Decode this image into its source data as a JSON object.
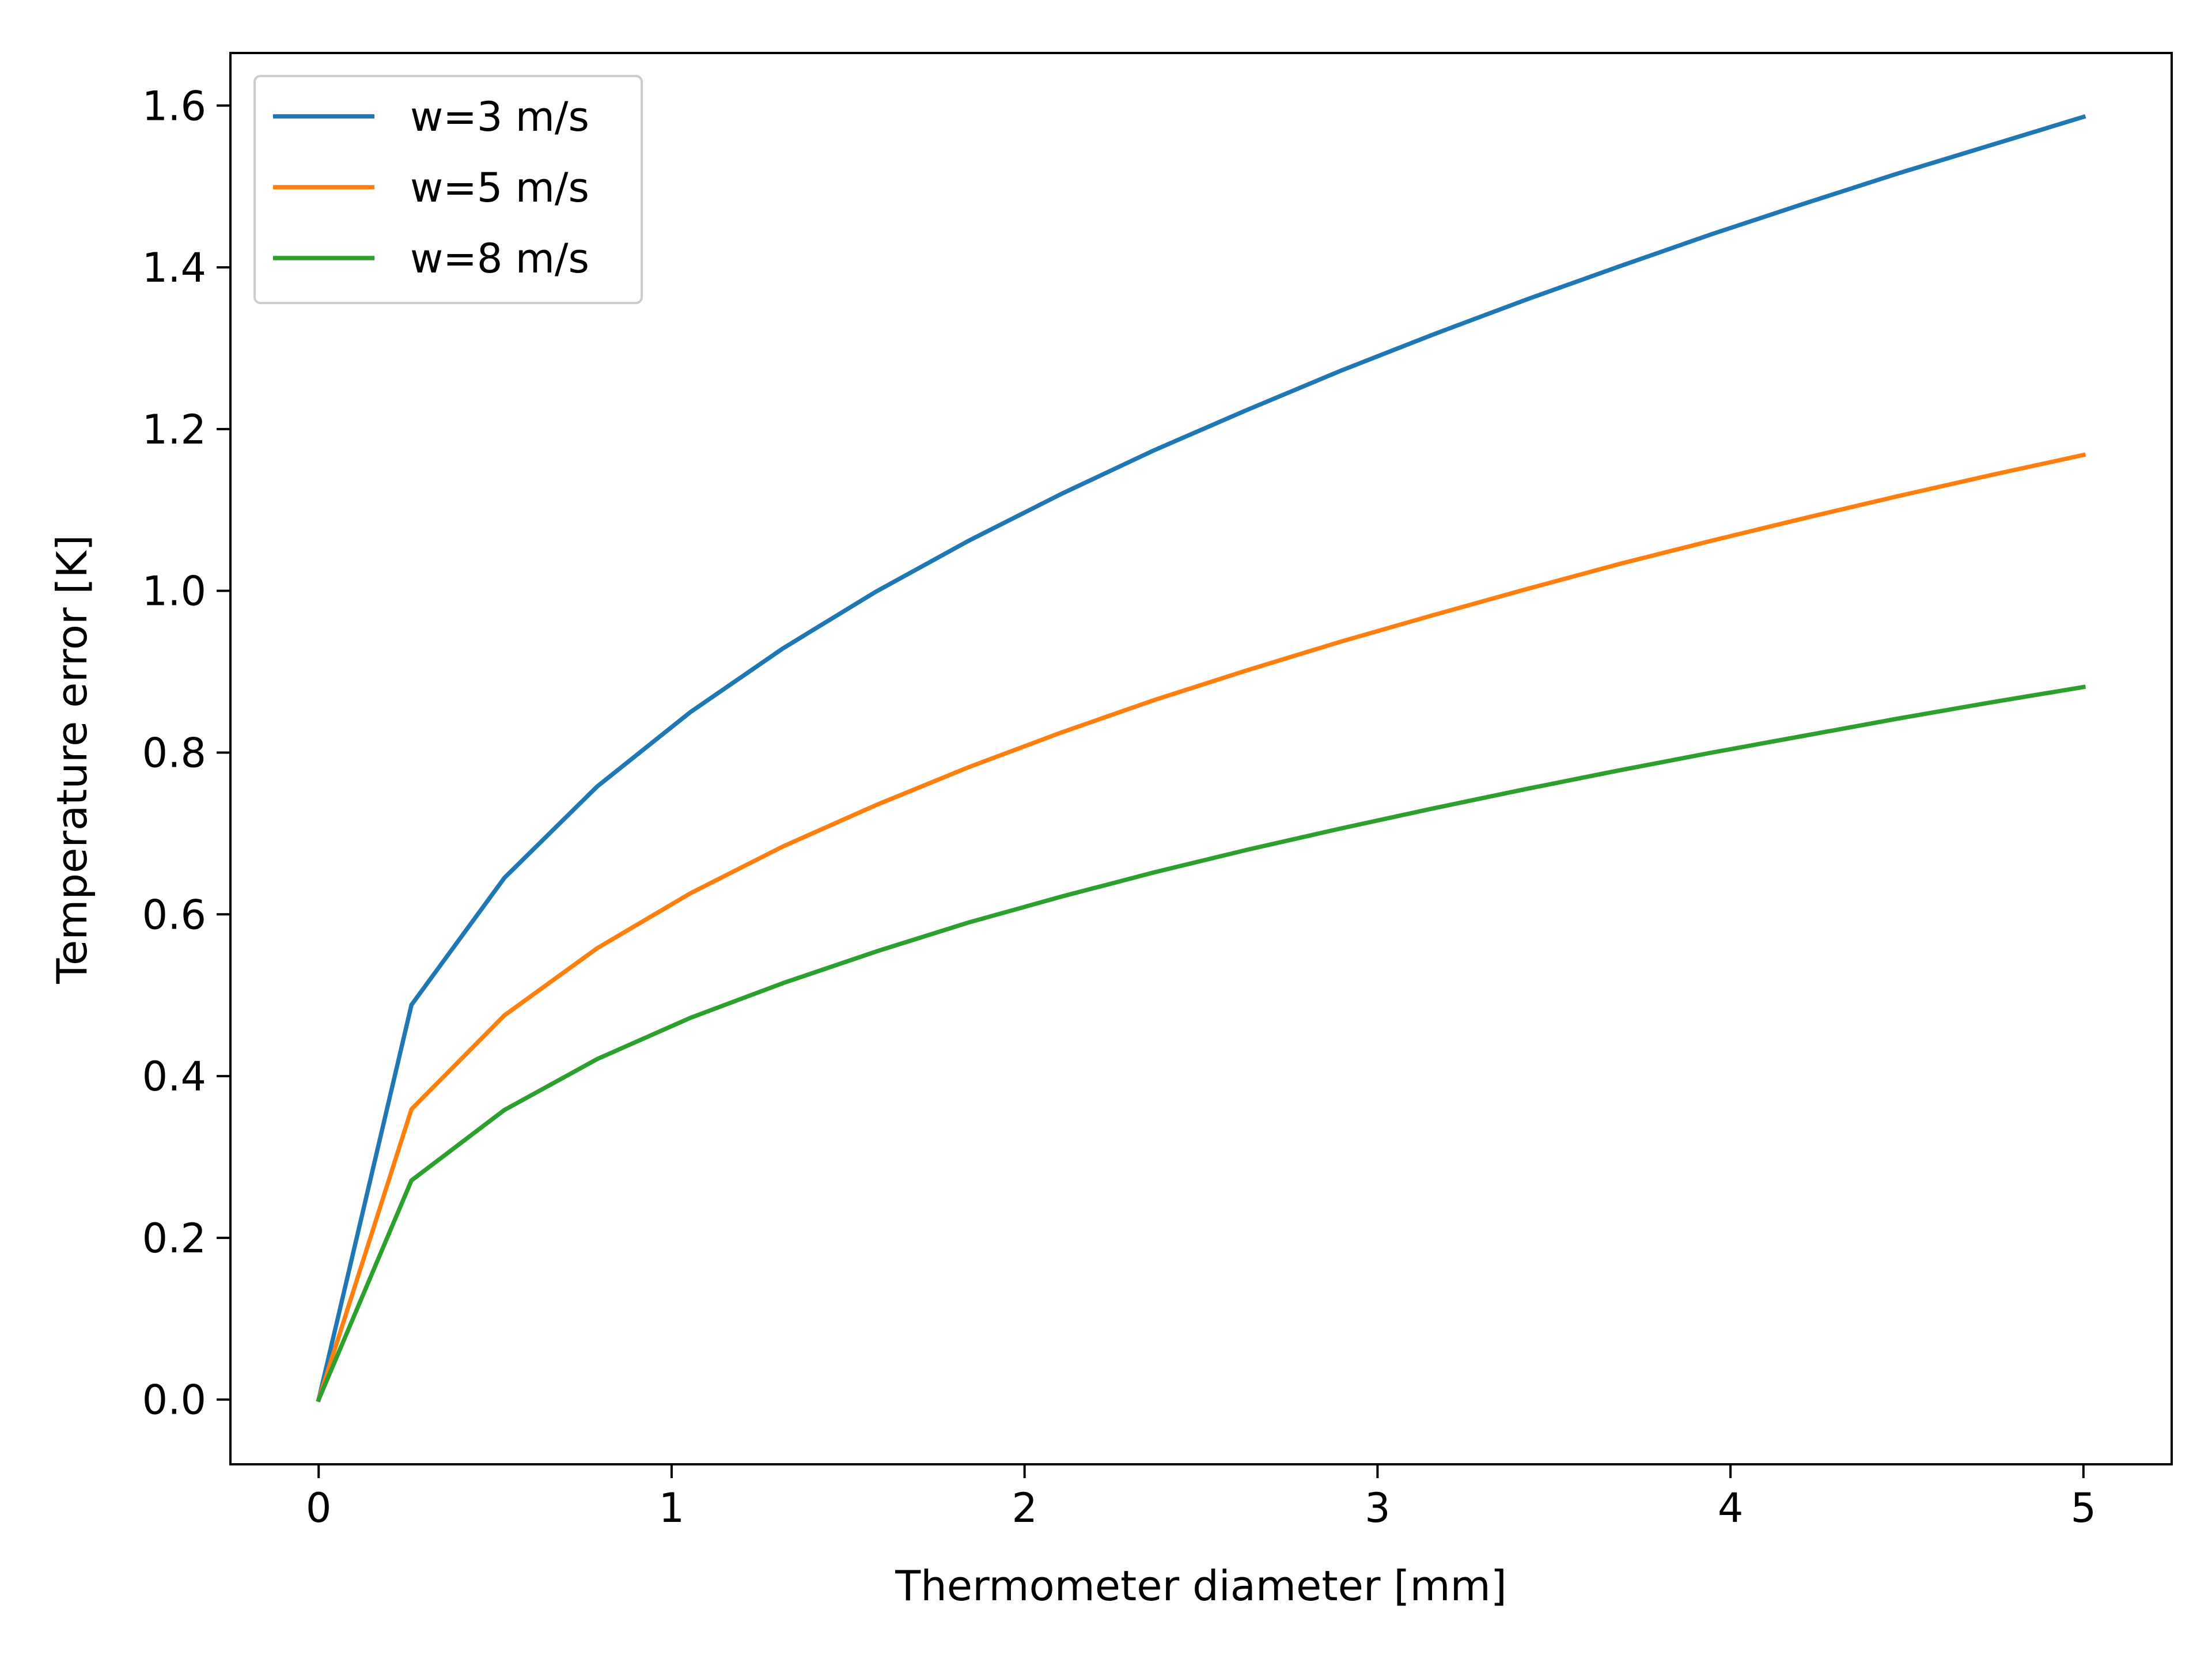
{
  "chart_data": {
    "type": "line",
    "title": "",
    "xlabel": "Thermometer diameter [mm]",
    "ylabel": "Temperature error [K]",
    "xlim": [
      -0.25,
      5.25
    ],
    "ylim": [
      -0.08,
      1.665
    ],
    "grid": false,
    "legend_position": "top-left",
    "x_ticks": [
      0,
      1,
      2,
      3,
      4,
      5
    ],
    "x_tick_labels": [
      "0",
      "1",
      "2",
      "3",
      "4",
      "5"
    ],
    "y_ticks": [
      0.0,
      0.2,
      0.4,
      0.6,
      0.8,
      1.0,
      1.2,
      1.4,
      1.6
    ],
    "y_tick_labels": [
      "0.0",
      "0.2",
      "0.4",
      "0.6",
      "0.8",
      "1.0",
      "1.2",
      "1.4",
      "1.6"
    ],
    "x": [
      0.0,
      0.263,
      0.526,
      0.789,
      1.053,
      1.316,
      1.579,
      1.842,
      2.105,
      2.368,
      2.632,
      2.895,
      3.158,
      3.421,
      3.684,
      3.947,
      4.211,
      4.474,
      4.737,
      5.0
    ],
    "series": [
      {
        "name": "w=3 m/s",
        "color": "#1f77b4",
        "values": [
          0.0,
          0.488,
          0.645,
          0.758,
          0.85,
          0.929,
          0.999,
          1.062,
          1.12,
          1.174,
          1.224,
          1.272,
          1.317,
          1.36,
          1.401,
          1.441,
          1.479,
          1.516,
          1.551,
          1.586
        ]
      },
      {
        "name": "w=5 m/s",
        "color": "#ff7f0e",
        "values": [
          0.0,
          0.359,
          0.475,
          0.558,
          0.626,
          0.684,
          0.735,
          0.782,
          0.825,
          0.865,
          0.902,
          0.937,
          0.97,
          1.002,
          1.033,
          1.062,
          1.09,
          1.117,
          1.143,
          1.168
        ]
      },
      {
        "name": "w=8 m/s",
        "color": "#2ca02c",
        "values": [
          0.0,
          0.271,
          0.358,
          0.421,
          0.472,
          0.515,
          0.554,
          0.59,
          0.622,
          0.652,
          0.68,
          0.706,
          0.731,
          0.755,
          0.778,
          0.8,
          0.821,
          0.842,
          0.862,
          0.881
        ]
      }
    ]
  }
}
